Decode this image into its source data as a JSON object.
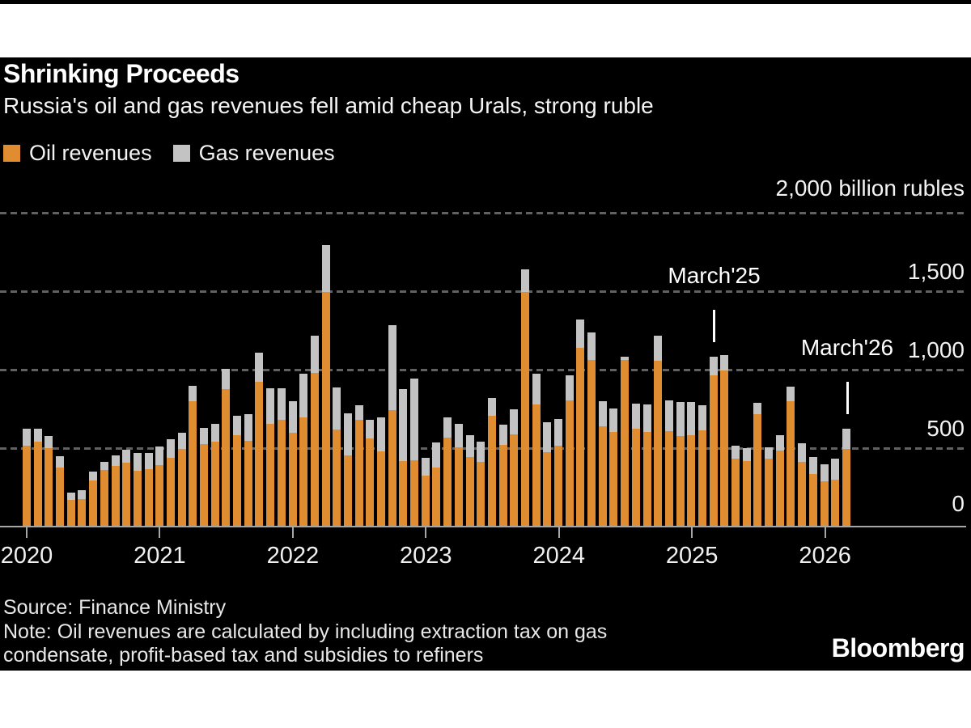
{
  "header": {
    "title": "Shrinking Proceeds",
    "subtitle": "Russia's oil and gas revenues fell amid cheap Urals, strong ruble"
  },
  "legend": [
    {
      "label": "Oil revenues",
      "color": "#E08C30"
    },
    {
      "label": "Gas revenues",
      "color": "#C3C3C3"
    }
  ],
  "chart_data": {
    "type": "bar",
    "stacked": true,
    "title": "Shrinking Proceeds",
    "ylabel": "billion rubles",
    "ylim": [
      0,
      2000
    ],
    "grid": "dashed-horizontal",
    "y_tick_values": [
      2000,
      1500,
      1000,
      500,
      0
    ],
    "y_tick_labels": [
      "2,000 billion rubles",
      "1,500",
      "1,000",
      "500",
      "0"
    ],
    "x_year_labels": [
      "2020",
      "2021",
      "2022",
      "2023",
      "2024",
      "2025",
      "2026"
    ],
    "months": [
      "Jan 2020",
      "Feb 2020",
      "Mar 2020",
      "Apr 2020",
      "May 2020",
      "Jun 2020",
      "Jul 2020",
      "Aug 2020",
      "Sep 2020",
      "Oct 2020",
      "Nov 2020",
      "Dec 2020",
      "Jan 2021",
      "Feb 2021",
      "Mar 2021",
      "Apr 2021",
      "May 2021",
      "Jun 2021",
      "Jul 2021",
      "Aug 2021",
      "Sep 2021",
      "Oct 2021",
      "Nov 2021",
      "Dec 2021",
      "Jan 2022",
      "Feb 2022",
      "Mar 2022",
      "Apr 2022",
      "May 2022",
      "Jun 2022",
      "Jul 2022",
      "Aug 2022",
      "Sep 2022",
      "Oct 2022",
      "Nov 2022",
      "Dec 2022",
      "Jan 2023",
      "Feb 2023",
      "Mar 2023",
      "Apr 2023",
      "May 2023",
      "Jun 2023",
      "Jul 2023",
      "Aug 2023",
      "Sep 2023",
      "Oct 2023",
      "Nov 2023",
      "Dec 2023",
      "Jan 2024",
      "Feb 2024",
      "Mar 2024",
      "Apr 2024",
      "May 2024",
      "Jun 2024",
      "Jul 2024",
      "Aug 2024",
      "Sep 2024",
      "Oct 2024",
      "Nov 2024",
      "Dec 2024",
      "Jan 2025",
      "Feb 2025",
      "Mar 2025",
      "Apr 2025",
      "May 2025",
      "Jun 2025",
      "Jul 2025",
      "Aug 2025",
      "Sep 2025",
      "Oct 2025",
      "Nov 2025",
      "Dec 2025",
      "Jan 2026",
      "Feb 2026",
      "Mar 2026"
    ],
    "series": [
      {
        "name": "Oil revenues",
        "color": "#E08C30",
        "values": [
          509,
          538,
          497,
          369,
          166,
          169,
          287,
          357,
          382,
          404,
          352,
          361,
          387,
          434,
          491,
          793,
          521,
          538,
          869,
          577,
          543,
          917,
          647,
          673,
          595,
          690,
          974,
          1490,
          614,
          447,
          673,
          557,
          473,
          739,
          415,
          420,
          318,
          370,
          560,
          500,
          438,
          408,
          700,
          518,
          580,
          1490,
          775,
          470,
          510,
          800,
          1135,
          1056,
          633,
          599,
          1055,
          617,
          597,
          1050,
          603,
          574,
          575,
          608,
          960,
          991,
          430,
          412,
          713,
          430,
          478,
          795,
          405,
          330,
          283,
          296,
          492
        ]
      },
      {
        "name": "Gas revenues",
        "color": "#C3C3C3",
        "values": [
          109,
          80,
          73,
          75,
          47,
          56,
          60,
          52,
          69,
          82,
          110,
          101,
          116,
          118,
          100,
          99,
          104,
          114,
          131,
          123,
          170,
          187,
          231,
          205,
          200,
          279,
          235,
          301,
          268,
          271,
          97,
          116,
          217,
          539,
          455,
          520,
          117,
          160,
          130,
          150,
          137,
          127,
          115,
          128,
          163,
          146,
          192,
          190,
          170,
          158,
          180,
          177,
          161,
          151,
          25,
          160,
          174,
          160,
          197,
          214,
          213,
          160,
          118,
          96,
          83,
          84,
          70,
          69,
          101,
          92,
          122,
          110,
          108,
          134,
          129
        ]
      }
    ],
    "annotations": [
      {
        "label": "March'25",
        "month_index": 62
      },
      {
        "label": "March'26",
        "month_index": 74
      }
    ],
    "legend_position": "top-left",
    "value_axis_side": "right"
  },
  "footer": {
    "source": "Source: Finance Ministry",
    "note_line1": "Note: Oil revenues are calculated by including extraction tax on gas",
    "note_line2": "condensate, profit-based tax and subsidies to refiners",
    "brand": "Bloomberg"
  }
}
